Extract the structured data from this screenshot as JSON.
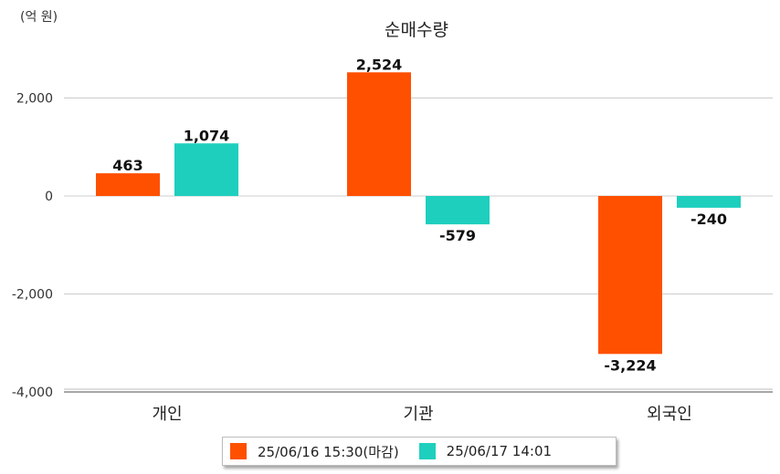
{
  "chart_data": {
    "type": "bar",
    "title": "순매수량",
    "unit_label": "(억 원)",
    "categories": [
      "개인",
      "기관",
      "외국인"
    ],
    "series": [
      {
        "name": "25/06/16 15:30(마감)",
        "color": "#ff5000",
        "values": [
          463,
          2524,
          -3224
        ],
        "labels": [
          "463",
          "2,524",
          "-3,224"
        ]
      },
      {
        "name": "25/06/17 14:01",
        "color": "#1ecfbe",
        "values": [
          1074,
          -579,
          -240
        ],
        "labels": [
          "1,074",
          "-579",
          "-240"
        ]
      }
    ],
    "y_ticks": [
      2000,
      0,
      -2000,
      -4000
    ],
    "y_tick_labels": [
      "2,000",
      "0",
      "-2,000",
      "-4,000"
    ],
    "ylim": [
      -4000,
      2800
    ],
    "grid": true,
    "legend_position": "bottom-center"
  }
}
